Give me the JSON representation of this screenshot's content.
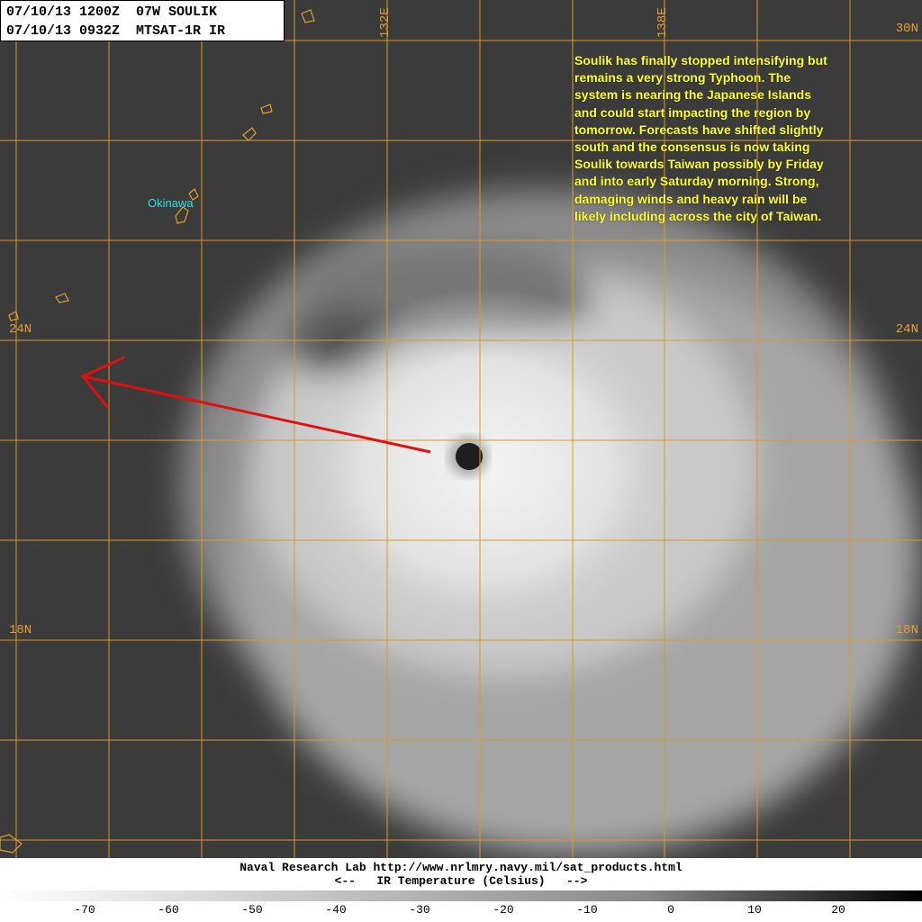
{
  "header": {
    "lines": [
      "07/10/13 1200Z  07W SOULIK",
      "07/10/13 0932Z  MTSAT-1R IR"
    ]
  },
  "grid_labels": {
    "top": [
      "132E",
      "138E"
    ],
    "right": [
      "30N",
      "24N",
      "18N"
    ],
    "left": [
      "24N",
      "18N"
    ]
  },
  "place_label": "Okinawa",
  "annotation": {
    "lines": [
      "Soulik has finally stopped intensifying but",
      "remains a very strong Typhoon. The",
      "system is nearing the Japanese Islands",
      "and could start impacting the region by",
      "tomorrow. Forecasts have shifted slightly",
      "south and the consensus is now taking",
      "Soulik towards Taiwan possibly by Friday",
      "and into early Saturday morning. Strong,",
      "damaging winds and heavy rain will be",
      "likely including across the city of Taiwan."
    ]
  },
  "footer": {
    "lines": [
      "Naval Research Lab http://www.nrlmry.navy.mil/sat_products.html",
      "<--   IR Temperature (Celsius)   -->"
    ]
  },
  "colorbar": {
    "ticks": [
      -70,
      -60,
      -50,
      -40,
      -30,
      -20,
      -10,
      0,
      10,
      20
    ]
  }
}
